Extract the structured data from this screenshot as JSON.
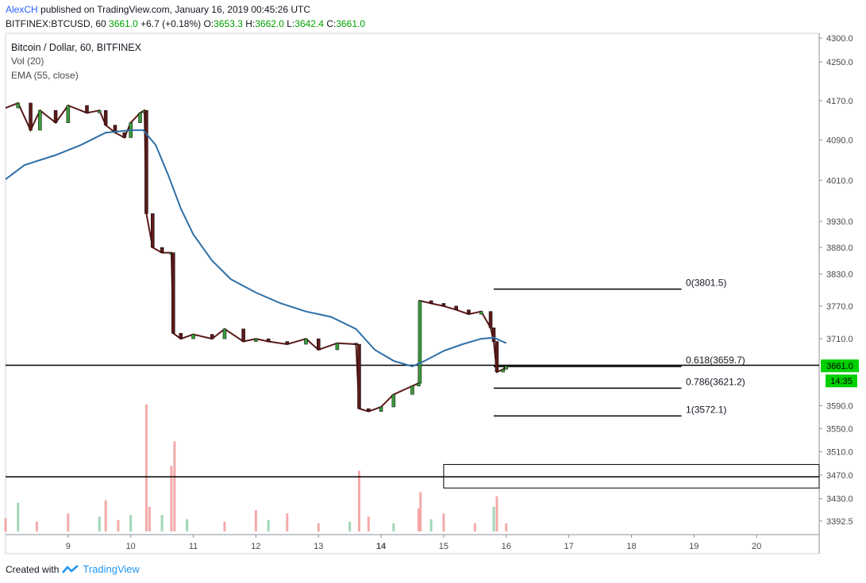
{
  "header": {
    "author": "AlexCH",
    "published": "published on TradingView.com, January 16, 2019 00:45:26 UTC",
    "symbol": "BITFINEX:BTCUSD, 60",
    "last": "3661.0",
    "change": "+6.7 (+0.18%)",
    "o_label": "O:",
    "o": "3653.3",
    "h_label": "H:",
    "h": "3662.0",
    "l_label": "L:",
    "l": "3642.4",
    "c_label": "C:",
    "c": "3661.0"
  },
  "legend": {
    "title": "Bitcoin / Dollar, 60, BITFINEX",
    "vol": "Vol (20)",
    "ema": "EMA (55, close)"
  },
  "footer": {
    "created": "Created with",
    "brand": "TradingView"
  },
  "colors": {
    "up": "#3c9b3c",
    "down": "#5d1a1a",
    "ema": "#2f6fa7",
    "vol_up": "#8fd0a8",
    "vol_down": "#f29a9a",
    "price_tag": "#00d000",
    "accent": "#2962ff"
  },
  "chart_data": {
    "type": "candlestick",
    "title": "Bitcoin / Dollar, 60, BITFINEX",
    "x_ticks": [
      "9",
      "10",
      "11",
      "12",
      "13",
      "14",
      "15",
      "16",
      "17",
      "18",
      "19",
      "20"
    ],
    "x_tick_days": [
      9,
      10,
      11,
      12,
      13,
      14,
      15,
      16,
      17,
      18,
      19,
      20
    ],
    "y_ticks": [
      4300.0,
      4250.0,
      4170.0,
      4090.0,
      4010.0,
      3930.0,
      3880.0,
      3830.0,
      3770.0,
      3710.0,
      3590.0,
      3550.0,
      3510.0,
      3470.0,
      3430.0,
      3392.5
    ],
    "y_scale": "log",
    "ylim": [
      3370,
      4310
    ],
    "xlim": [
      8.0,
      21.0
    ],
    "price_points": [
      [
        8.0,
        4155
      ],
      [
        8.2,
        4165
      ],
      [
        8.4,
        4110
      ],
      [
        8.55,
        4150
      ],
      [
        8.8,
        4125
      ],
      [
        9.0,
        4160
      ],
      [
        9.3,
        4145
      ],
      [
        9.5,
        4150
      ],
      [
        9.6,
        4120
      ],
      [
        9.75,
        4105
      ],
      [
        9.9,
        4095
      ],
      [
        10.0,
        4125
      ],
      [
        10.15,
        4145
      ],
      [
        10.22,
        4150
      ],
      [
        10.25,
        3945
      ],
      [
        10.35,
        3880
      ],
      [
        10.5,
        3870
      ],
      [
        10.65,
        3870
      ],
      [
        10.68,
        3720
      ],
      [
        10.8,
        3710
      ],
      [
        11.0,
        3718
      ],
      [
        11.3,
        3710
      ],
      [
        11.5,
        3728
      ],
      [
        11.8,
        3705
      ],
      [
        12.0,
        3710
      ],
      [
        12.2,
        3705
      ],
      [
        12.5,
        3700
      ],
      [
        12.8,
        3710
      ],
      [
        13.0,
        3690
      ],
      [
        13.3,
        3702
      ],
      [
        13.6,
        3700
      ],
      [
        13.65,
        3585
      ],
      [
        13.8,
        3580
      ],
      [
        14.0,
        3588
      ],
      [
        14.2,
        3610
      ],
      [
        14.5,
        3625
      ],
      [
        14.6,
        3630
      ],
      [
        14.62,
        3780
      ],
      [
        14.8,
        3775
      ],
      [
        15.0,
        3770
      ],
      [
        15.2,
        3763
      ],
      [
        15.4,
        3755
      ],
      [
        15.6,
        3760
      ],
      [
        15.75,
        3730
      ],
      [
        15.8,
        3705
      ],
      [
        15.85,
        3650
      ],
      [
        15.95,
        3655
      ],
      [
        16.0,
        3661
      ]
    ],
    "ema_points": [
      [
        8.0,
        4012
      ],
      [
        8.3,
        4040
      ],
      [
        8.8,
        4060
      ],
      [
        9.2,
        4080
      ],
      [
        9.6,
        4105
      ],
      [
        10.0,
        4110
      ],
      [
        10.2,
        4110
      ],
      [
        10.4,
        4080
      ],
      [
        10.6,
        4020
      ],
      [
        10.8,
        3955
      ],
      [
        11.0,
        3905
      ],
      [
        11.3,
        3855
      ],
      [
        11.6,
        3820
      ],
      [
        12.0,
        3795
      ],
      [
        12.4,
        3775
      ],
      [
        12.8,
        3760
      ],
      [
        13.2,
        3750
      ],
      [
        13.6,
        3728
      ],
      [
        13.9,
        3690
      ],
      [
        14.2,
        3670
      ],
      [
        14.5,
        3660
      ],
      [
        14.7,
        3670
      ],
      [
        15.0,
        3688
      ],
      [
        15.3,
        3700
      ],
      [
        15.6,
        3710
      ],
      [
        15.8,
        3712
      ],
      [
        16.0,
        3702
      ]
    ],
    "volume_points": [
      [
        8.0,
        16
      ],
      [
        8.2,
        35
      ],
      [
        8.5,
        12
      ],
      [
        9.0,
        22
      ],
      [
        9.5,
        18
      ],
      [
        9.6,
        38
      ],
      [
        9.8,
        14
      ],
      [
        10.0,
        20
      ],
      [
        10.25,
        155
      ],
      [
        10.3,
        30
      ],
      [
        10.5,
        20
      ],
      [
        10.65,
        80
      ],
      [
        10.7,
        110
      ],
      [
        10.9,
        15
      ],
      [
        11.5,
        12
      ],
      [
        12.0,
        26
      ],
      [
        12.2,
        14
      ],
      [
        12.5,
        22
      ],
      [
        13.0,
        10
      ],
      [
        13.5,
        12
      ],
      [
        13.65,
        74
      ],
      [
        13.8,
        18
      ],
      [
        14.2,
        10
      ],
      [
        14.6,
        28
      ],
      [
        14.63,
        48
      ],
      [
        14.8,
        15
      ],
      [
        15.0,
        22
      ],
      [
        15.5,
        10
      ],
      [
        15.8,
        30
      ],
      [
        15.85,
        43
      ],
      [
        16.0,
        10
      ]
    ],
    "fib_levels": [
      {
        "label": "0(3801.5)",
        "value": 3801.5
      },
      {
        "label": "0.618(3659.7)",
        "value": 3659.7
      },
      {
        "label": "0.786(3621.2)",
        "value": 3621.2
      },
      {
        "label": "1(3572.1)",
        "value": 3572.1
      }
    ],
    "horizontal_lines": [
      3662.0,
      3467.0
    ],
    "rectangle": {
      "x_from": 15.0,
      "x_to": 21.0,
      "y_from": 3448.0,
      "y_to": 3488.0
    },
    "last_price": "3661.0",
    "countdown": "14:35"
  }
}
